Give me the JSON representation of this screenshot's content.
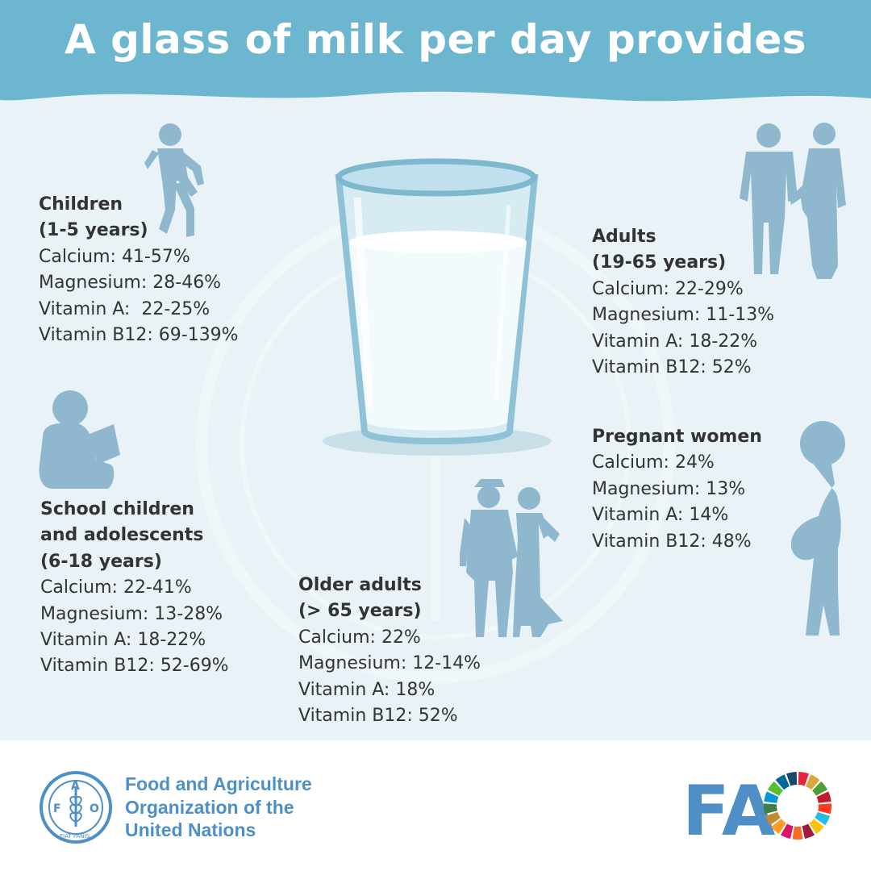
{
  "title": "A glass of milk per day provides",
  "colors": {
    "header": "#6cb6cf",
    "panel": "#e9f3f7",
    "silhouette": "#8fb8cf",
    "text": "#333333",
    "fao_blue": "#4e8fc6"
  },
  "groups": {
    "children": {
      "heading": [
        "Children",
        "(1-5 years)"
      ],
      "rows": [
        "Calcium: 41-57%",
        "Magnesium: 28-46%",
        "Vitamin A:  22-25%",
        "Vitamin B12: 69-139%"
      ]
    },
    "school": {
      "heading": [
        "School children",
        "and adolescents",
        "(6-18 years)"
      ],
      "rows": [
        "Calcium: 22-41%",
        "Magnesium: 13-28%",
        "Vitamin A: 18-22%",
        "Vitamin B12: 52-69%"
      ]
    },
    "older": {
      "heading": [
        "Older adults",
        "(> 65 years)"
      ],
      "rows": [
        "Calcium: 22%",
        "Magnesium: 12-14%",
        "Vitamin A: 18%",
        "Vitamin B12: 52%"
      ]
    },
    "adults": {
      "heading": [
        "Adults",
        "(19-65 years)"
      ],
      "rows": [
        "Calcium: 22-29%",
        "Magnesium: 11-13%",
        "Vitamin A: 18-22%",
        "Vitamin B12: 52%"
      ]
    },
    "pregnant": {
      "heading": [
        "Pregnant women"
      ],
      "rows": [
        "Calcium: 24%",
        "Magnesium: 13%",
        "Vitamin A: 14%",
        "Vitamin B12: 48%"
      ]
    }
  },
  "footer": {
    "org_name": [
      "Food and Agriculture",
      "Organization of the",
      "United Nations"
    ],
    "emblem_text": {
      "letters": [
        "F",
        "A",
        "O"
      ],
      "motto": "FIAT PANIS"
    },
    "logo_text": "FA"
  }
}
